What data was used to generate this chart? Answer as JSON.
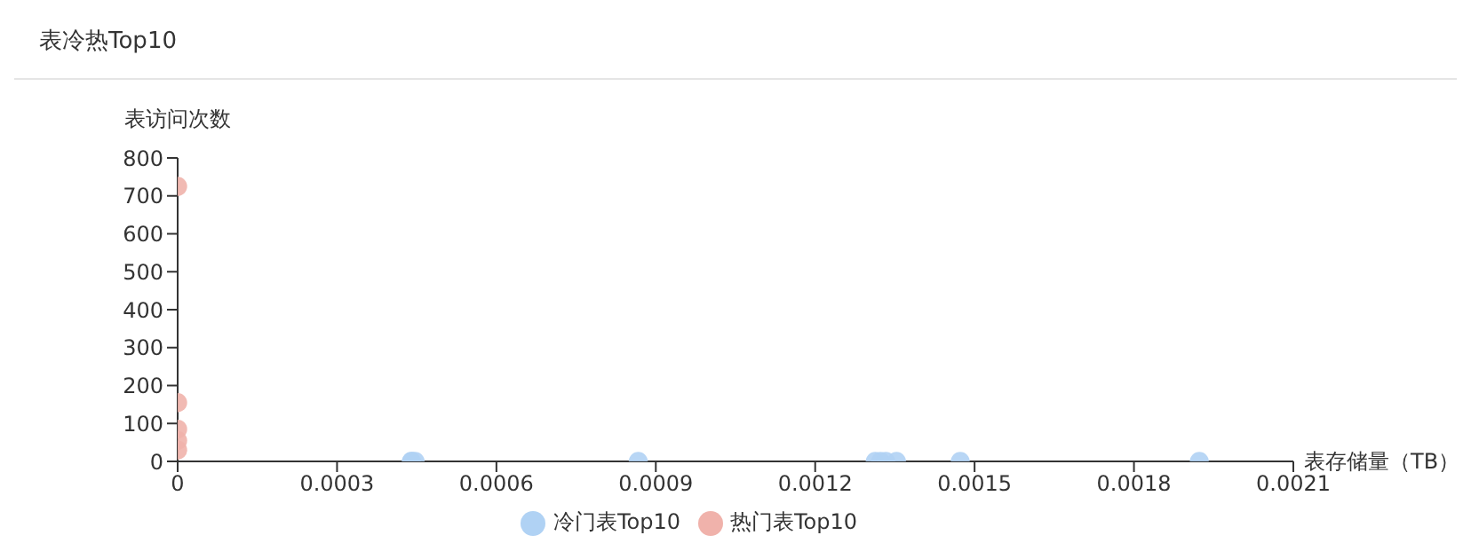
{
  "chart_data": {
    "type": "scatter",
    "title": "表冷热Top10",
    "xlabel": "表存储量（TB）",
    "ylabel": "表访问次数",
    "xlim": [
      0,
      0.0021
    ],
    "xticks": [
      0,
      0.0003,
      0.0006,
      0.0009,
      0.0012,
      0.0015,
      0.0018,
      0.0021
    ],
    "ylim": [
      0,
      800
    ],
    "yticks": [
      0,
      100,
      200,
      300,
      400,
      500,
      600,
      700,
      800
    ],
    "grid": false,
    "legend": "bottom",
    "marker": "circle",
    "series": [
      {
        "name": "热门表Top10",
        "color": "#f0b2ab",
        "x": [
          0,
          0,
          0,
          0,
          0
        ],
        "values": [
          725,
          155,
          85,
          55,
          30
        ]
      },
      {
        "name": "冷门表Top10",
        "color": "#b0d2f4",
        "x": [
          0.00044,
          0.000447,
          0.000867,
          0.001313,
          0.001323,
          0.001333,
          0.001353,
          0.001473,
          0.001923,
          0.00044
        ],
        "values": [
          0,
          0,
          0,
          0,
          0,
          0,
          0,
          0,
          0,
          0
        ]
      }
    ]
  }
}
